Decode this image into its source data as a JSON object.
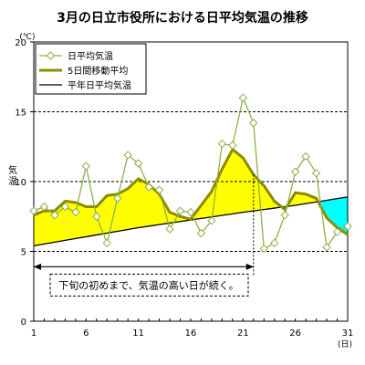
{
  "chart_data": {
    "type": "line",
    "title": "3月の日立市役所における日平均気温の推移",
    "ylabel": "気温",
    "y_unit": "(℃)",
    "x_unit": "(日)",
    "xlim": [
      1,
      31
    ],
    "ylim": [
      0,
      20
    ],
    "x_ticks": [
      1,
      6,
      11,
      16,
      21,
      26,
      31
    ],
    "y_ticks": [
      0,
      5,
      10,
      15,
      20
    ],
    "grid": "dashed horizontal at 5, 10, 15",
    "legend": "top-left",
    "x": [
      1,
      2,
      3,
      4,
      5,
      6,
      7,
      8,
      9,
      10,
      11,
      12,
      13,
      14,
      15,
      16,
      17,
      18,
      19,
      20,
      21,
      22,
      23,
      24,
      25,
      26,
      27,
      28,
      29,
      30,
      31
    ],
    "series": [
      {
        "name": "日平均気温",
        "color": "#8db04a",
        "marker": "diamond",
        "values": [
          7.9,
          8.2,
          7.6,
          8.2,
          7.8,
          11.1,
          7.5,
          5.6,
          8.8,
          11.9,
          11.3,
          9.6,
          9.4,
          6.6,
          7.9,
          7.8,
          6.3,
          7.2,
          12.7,
          12.6,
          16.0,
          14.2,
          5.2,
          5.6,
          7.6,
          10.7,
          11.8,
          10.6,
          5.3,
          6.4,
          6.8
        ]
      },
      {
        "name": "5日間移動平均",
        "color": "#8c8c00",
        "values": [
          7.6,
          7.9,
          7.9,
          8.6,
          8.5,
          8.2,
          8.2,
          9.0,
          9.1,
          9.5,
          10.2,
          9.8,
          9.1,
          7.8,
          7.5,
          7.3,
          8.3,
          9.3,
          10.9,
          12.3,
          11.7,
          10.5,
          9.7,
          8.6,
          8.0,
          9.2,
          9.1,
          8.8,
          7.4,
          6.7,
          6.2
        ]
      },
      {
        "name": "平年日平均気温",
        "color": "#000000",
        "values": [
          5.4,
          5.53,
          5.66,
          5.79,
          5.92,
          6.05,
          6.18,
          6.31,
          6.44,
          6.57,
          6.7,
          6.81,
          6.92,
          7.03,
          7.14,
          7.25,
          7.36,
          7.47,
          7.58,
          7.69,
          7.8,
          7.9,
          8.0,
          8.1,
          8.2,
          8.3,
          8.42,
          8.54,
          8.66,
          8.78,
          8.9
        ]
      }
    ],
    "fill_above_normal_color": "#ffff00",
    "fill_below_normal_color": "#00ffff",
    "annotation": {
      "text": "下旬の初めまで、気温の高い日が続く。",
      "arrow_from": 1,
      "arrow_to": 22,
      "arrow_y": 3.9
    }
  }
}
